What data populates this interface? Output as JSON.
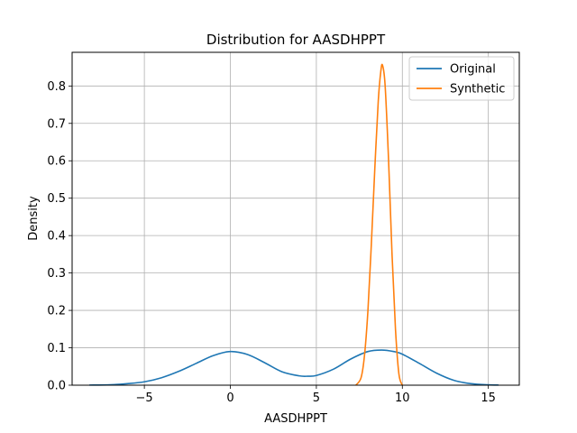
{
  "chart_data": {
    "type": "line",
    "title": "Distribution for AASDHPPT",
    "xlabel": "AASDHPPT",
    "ylabel": "Density",
    "xlim": [
      -9.2,
      16.8
    ],
    "ylim": [
      0,
      0.89
    ],
    "xticks": [
      -5,
      0,
      5,
      10,
      15
    ],
    "xtick_labels": [
      "−5",
      "0",
      "5",
      "10",
      "15"
    ],
    "yticks": [
      0.0,
      0.1,
      0.2,
      0.3,
      0.4,
      0.5,
      0.6,
      0.7,
      0.8
    ],
    "ytick_labels": [
      "0.0",
      "0.1",
      "0.2",
      "0.3",
      "0.4",
      "0.5",
      "0.6",
      "0.7",
      "0.8"
    ],
    "grid": true,
    "legend_position": "top-right",
    "series": [
      {
        "name": "Original",
        "color": "#1f77b4",
        "x": [
          -8.2,
          -7,
          -6,
          -5,
          -4,
          -3,
          -2,
          -1,
          0,
          1,
          2,
          3,
          4,
          4.5,
          5,
          6,
          7,
          8,
          8.8,
          9.5,
          10,
          11,
          12,
          13,
          14,
          15,
          15.6
        ],
        "y": [
          0.0003,
          0.001,
          0.004,
          0.009,
          0.02,
          0.037,
          0.058,
          0.079,
          0.09,
          0.082,
          0.06,
          0.036,
          0.025,
          0.024,
          0.026,
          0.043,
          0.07,
          0.09,
          0.094,
          0.09,
          0.083,
          0.058,
          0.032,
          0.013,
          0.004,
          0.001,
          0.0003
        ]
      },
      {
        "name": "Synthetic",
        "color": "#ff7f0e",
        "x": [
          7.3,
          7.6,
          7.8,
          8.0,
          8.2,
          8.4,
          8.6,
          8.75,
          8.85,
          9.0,
          9.2,
          9.4,
          9.6,
          9.8,
          10.0
        ],
        "y": [
          0.0,
          0.02,
          0.08,
          0.2,
          0.38,
          0.58,
          0.76,
          0.84,
          0.855,
          0.8,
          0.6,
          0.35,
          0.15,
          0.03,
          0.0
        ]
      }
    ]
  }
}
